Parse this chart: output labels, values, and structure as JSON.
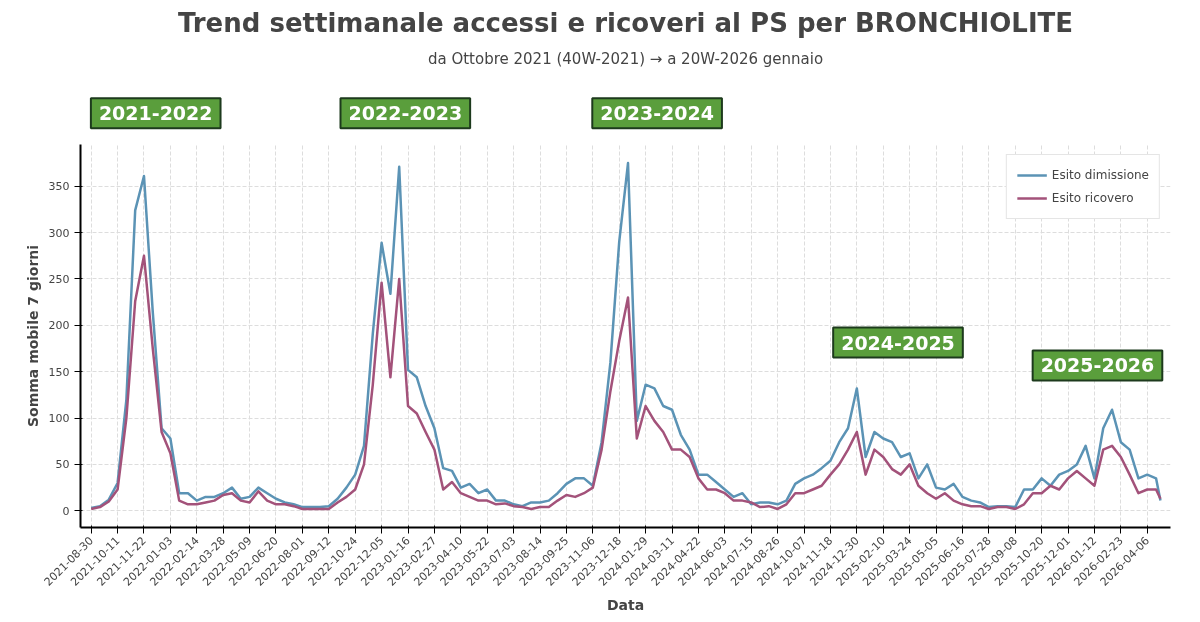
{
  "chart_data": {
    "type": "line",
    "title": "Trend settimanale accessi e ricoveri al PS per BRONCHIOLITE",
    "subtitle": "da Ottobre 2021 (40W-2021) → a 20W-2026 gennaio",
    "xlabel": "Data",
    "ylabel": "Somma mobile 7 giorni",
    "x": [
      "2021-08-30",
      "2021-09-13",
      "2021-09-27",
      "2021-10-11",
      "2021-10-25",
      "2021-11-08",
      "2021-11-22",
      "2021-12-06",
      "2021-12-20",
      "2022-01-03",
      "2022-01-17",
      "2022-01-31",
      "2022-02-14",
      "2022-02-28",
      "2022-03-14",
      "2022-03-28",
      "2022-04-11",
      "2022-04-25",
      "2022-05-09",
      "2022-05-23",
      "2022-06-06",
      "2022-06-20",
      "2022-07-04",
      "2022-07-18",
      "2022-08-01",
      "2022-08-15",
      "2022-08-29",
      "2022-09-12",
      "2022-09-26",
      "2022-10-10",
      "2022-10-24",
      "2022-11-07",
      "2022-11-21",
      "2022-12-05",
      "2022-12-19",
      "2023-01-02",
      "2023-01-16",
      "2023-01-30",
      "2023-02-13",
      "2023-02-27",
      "2023-03-13",
      "2023-03-27",
      "2023-04-10",
      "2023-04-24",
      "2023-05-08",
      "2023-05-22",
      "2023-06-05",
      "2023-06-19",
      "2023-07-03",
      "2023-07-17",
      "2023-07-31",
      "2023-08-14",
      "2023-08-28",
      "2023-09-11",
      "2023-09-25",
      "2023-10-09",
      "2023-10-23",
      "2023-11-06",
      "2023-11-20",
      "2023-12-04",
      "2023-12-18",
      "2024-01-01",
      "2024-01-15",
      "2024-01-29",
      "2024-02-12",
      "2024-02-26",
      "2024-03-11",
      "2024-03-25",
      "2024-04-08",
      "2024-04-22",
      "2024-05-06",
      "2024-05-20",
      "2024-06-03",
      "2024-06-17",
      "2024-07-01",
      "2024-07-15",
      "2024-07-29",
      "2024-08-12",
      "2024-08-26",
      "2024-09-09",
      "2024-09-23",
      "2024-10-07",
      "2024-10-21",
      "2024-11-04",
      "2024-11-18",
      "2024-12-02",
      "2024-12-16",
      "2024-12-30",
      "2025-01-13",
      "2025-01-27",
      "2025-02-10",
      "2025-02-24",
      "2025-03-10",
      "2025-03-24",
      "2025-04-07",
      "2025-04-21",
      "2025-05-05",
      "2025-05-19",
      "2025-06-02",
      "2025-06-16",
      "2025-06-30",
      "2025-07-14",
      "2025-07-28",
      "2025-08-11",
      "2025-08-25",
      "2025-09-08",
      "2025-09-22",
      "2025-10-06",
      "2025-10-20",
      "2025-11-03",
      "2025-11-17",
      "2025-12-01",
      "2025-12-15",
      "2025-12-29",
      "2026-01-12",
      "2026-01-26",
      "2026-02-09",
      "2026-02-23",
      "2026-03-09",
      "2026-03-23",
      "2026-04-06",
      "2026-04-20",
      "2026-04-27"
    ],
    "series": [
      {
        "name": "Esito dimissione",
        "color": "#5b93b5",
        "values": [
          3,
          5,
          12,
          30,
          120,
          324,
          361,
          214,
          89,
          78,
          19,
          19,
          11,
          15,
          15,
          19,
          25,
          13,
          15,
          25,
          19,
          13,
          9,
          7,
          4,
          4,
          4,
          5,
          13,
          25,
          39,
          70,
          191,
          289,
          234,
          371,
          152,
          144,
          113,
          89,
          46,
          43,
          25,
          29,
          19,
          23,
          11,
          11,
          7,
          5,
          9,
          9,
          11,
          19,
          29,
          35,
          35,
          27,
          74,
          160,
          290,
          375,
          97,
          136,
          132,
          113,
          109,
          82,
          66,
          39,
          39,
          31,
          23,
          15,
          19,
          7,
          9,
          9,
          7,
          11,
          29,
          35,
          39,
          46,
          54,
          74,
          89,
          132,
          58,
          85,
          78,
          74,
          58,
          62,
          35,
          50,
          25,
          23,
          29,
          15,
          11,
          9,
          4,
          5,
          5,
          4,
          23,
          23,
          35,
          27,
          39,
          43,
          50,
          70,
          35,
          89,
          109,
          74,
          66,
          35,
          39,
          35,
          11
        ]
      },
      {
        "name": "Esito ricovero",
        "color": "#a3527a",
        "values": [
          2,
          4,
          10,
          23,
          100,
          226,
          275,
          175,
          85,
          62,
          11,
          7,
          7,
          9,
          11,
          17,
          19,
          11,
          9,
          21,
          11,
          7,
          7,
          5,
          2,
          2,
          2,
          2,
          9,
          15,
          23,
          50,
          136,
          246,
          144,
          250,
          113,
          105,
          85,
          66,
          23,
          31,
          19,
          15,
          11,
          11,
          7,
          8,
          5,
          4,
          2,
          4,
          4,
          11,
          17,
          15,
          19,
          25,
          66,
          129,
          183,
          230,
          78,
          113,
          97,
          85,
          66,
          66,
          58,
          35,
          23,
          23,
          19,
          11,
          11,
          9,
          4,
          5,
          2,
          7,
          19,
          19,
          23,
          27,
          39,
          50,
          66,
          85,
          39,
          66,
          58,
          45,
          39,
          50,
          27,
          19,
          13,
          19,
          11,
          7,
          5,
          5,
          2,
          4,
          4,
          2,
          7,
          19,
          19,
          27,
          23,
          35,
          43,
          35,
          27,
          66,
          70,
          58,
          39,
          19,
          23,
          23,
          13
        ]
      }
    ],
    "xlim": [
      "2021-08-13",
      "2026-05-13"
    ],
    "xticks": [
      "2021-08-30",
      "2021-10-11",
      "2021-11-22",
      "2022-01-03",
      "2022-02-14",
      "2022-03-28",
      "2022-05-09",
      "2022-06-20",
      "2022-08-01",
      "2022-09-12",
      "2022-10-24",
      "2022-12-05",
      "2023-01-16",
      "2023-02-27",
      "2023-04-10",
      "2023-05-22",
      "2023-07-03",
      "2023-08-14",
      "2023-09-25",
      "2023-11-06",
      "2023-12-18",
      "2024-01-29",
      "2024-03-11",
      "2024-04-22",
      "2024-06-03",
      "2024-07-15",
      "2024-08-26",
      "2024-10-07",
      "2024-11-18",
      "2024-12-30",
      "2025-02-10",
      "2025-03-24",
      "2025-05-05",
      "2025-06-16",
      "2025-07-28",
      "2025-09-08",
      "2025-10-20",
      "2025-12-01",
      "2026-01-12",
      "2026-02-23",
      "2026-04-06"
    ],
    "ylim": [
      -18,
      395
    ],
    "yticks": [
      0,
      50,
      100,
      150,
      200,
      250,
      300,
      350
    ],
    "annotations": [
      "2021-2022",
      "2022-2023",
      "2023-2024",
      "2024-2025",
      "2025-2026"
    ],
    "grid": true,
    "legend": "top right",
    "marker": "none",
    "line_style": "solid"
  }
}
